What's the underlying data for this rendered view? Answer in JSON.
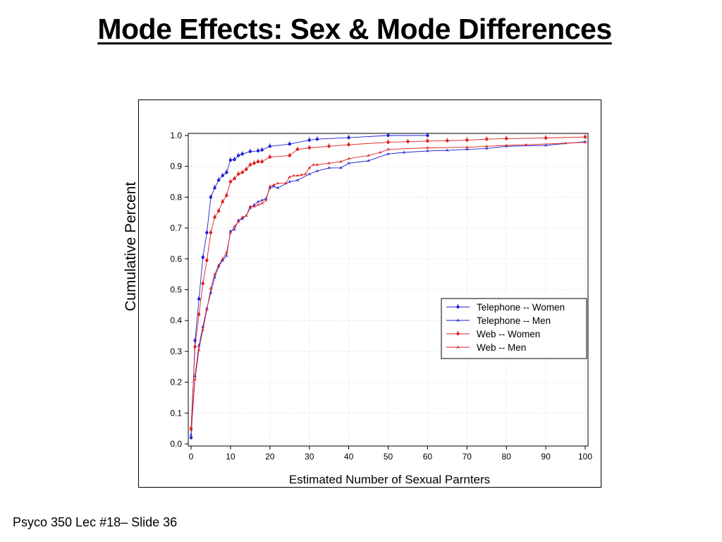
{
  "slide": {
    "title": "Mode Effects: Sex & Mode Differences",
    "footer": "Psyco 350 Lec #18– Slide 36"
  },
  "chart_data": {
    "type": "line",
    "title": "",
    "xlabel": "Estimated Number of Sexual Parnters",
    "ylabel": "Cumulative Percent",
    "xlim": [
      0,
      100
    ],
    "ylim": [
      0,
      1.0
    ],
    "xticks": [
      "0",
      "10",
      "20",
      "30",
      "40",
      "50",
      "60",
      "70",
      "80",
      "90",
      "100"
    ],
    "yticks": [
      "0.0",
      "0.1",
      "0.2",
      "0.3",
      "0.4",
      "0.5",
      "0.6",
      "0.7",
      "0.8",
      "0.9",
      "1.0"
    ],
    "grid": true,
    "legend_position": "right",
    "series": [
      {
        "name": "Telephone -- Women",
        "color": "#1f1fd6",
        "marker": "dot",
        "x": [
          0,
          1,
          2,
          3,
          4,
          5,
          6,
          7,
          8,
          9,
          10,
          11,
          12,
          13,
          15,
          17,
          18,
          20,
          25,
          30,
          32,
          40,
          50,
          60
        ],
        "y": [
          0.02,
          0.335,
          0.47,
          0.605,
          0.685,
          0.8,
          0.83,
          0.855,
          0.87,
          0.88,
          0.92,
          0.922,
          0.935,
          0.94,
          0.948,
          0.95,
          0.953,
          0.965,
          0.972,
          0.985,
          0.988,
          0.993,
          1.0,
          1.0
        ]
      },
      {
        "name": "Telephone -- Men",
        "color": "#1f1fd6",
        "marker": "dart",
        "x": [
          0,
          1,
          2,
          3,
          4,
          5,
          6,
          7,
          8,
          9,
          10,
          11,
          12,
          13,
          14,
          15,
          16,
          17,
          18,
          19,
          20,
          21,
          22,
          25,
          27,
          30,
          32,
          35,
          38,
          40,
          45,
          50,
          54,
          60,
          65,
          70,
          75,
          80,
          90,
          100
        ],
        "y": [
          0.03,
          0.22,
          0.32,
          0.38,
          0.44,
          0.49,
          0.54,
          0.575,
          0.595,
          0.61,
          0.69,
          0.695,
          0.725,
          0.73,
          0.74,
          0.765,
          0.775,
          0.785,
          0.79,
          0.795,
          0.83,
          0.835,
          0.83,
          0.85,
          0.855,
          0.875,
          0.885,
          0.895,
          0.895,
          0.91,
          0.918,
          0.94,
          0.945,
          0.95,
          0.952,
          0.955,
          0.958,
          0.965,
          0.968,
          0.98
        ]
      },
      {
        "name": "Web -- Women",
        "color": "#e01f1f",
        "marker": "dot",
        "x": [
          0,
          1,
          2,
          3,
          4,
          5,
          6,
          7,
          8,
          9,
          10,
          11,
          12,
          13,
          14,
          15,
          16,
          17,
          18,
          20,
          25,
          27,
          30,
          35,
          40,
          50,
          55,
          60,
          65,
          70,
          75,
          80,
          90,
          100
        ],
        "y": [
          0.05,
          0.315,
          0.42,
          0.52,
          0.595,
          0.685,
          0.735,
          0.755,
          0.785,
          0.805,
          0.85,
          0.86,
          0.875,
          0.88,
          0.89,
          0.905,
          0.91,
          0.915,
          0.915,
          0.93,
          0.935,
          0.955,
          0.96,
          0.965,
          0.97,
          0.978,
          0.98,
          0.982,
          0.983,
          0.985,
          0.988,
          0.99,
          0.992,
          0.995
        ]
      },
      {
        "name": "Web -- Men",
        "color": "#e01f1f",
        "marker": "dart",
        "x": [
          0,
          1,
          2,
          3,
          4,
          5,
          6,
          7,
          8,
          9,
          10,
          11,
          12,
          13,
          14,
          15,
          16,
          17,
          18,
          19,
          20,
          21,
          22,
          24,
          25,
          26,
          27,
          28,
          29,
          30,
          31,
          32,
          35,
          38,
          40,
          45,
          48,
          50,
          60,
          70,
          75,
          80,
          85,
          95,
          100
        ],
        "y": [
          0.045,
          0.21,
          0.305,
          0.37,
          0.435,
          0.505,
          0.55,
          0.58,
          0.6,
          0.62,
          0.685,
          0.705,
          0.72,
          0.735,
          0.74,
          0.77,
          0.77,
          0.775,
          0.78,
          0.79,
          0.835,
          0.84,
          0.845,
          0.845,
          0.865,
          0.87,
          0.87,
          0.872,
          0.875,
          0.895,
          0.905,
          0.905,
          0.91,
          0.915,
          0.925,
          0.935,
          0.945,
          0.955,
          0.96,
          0.962,
          0.965,
          0.968,
          0.97,
          0.975,
          0.978
        ]
      }
    ]
  }
}
